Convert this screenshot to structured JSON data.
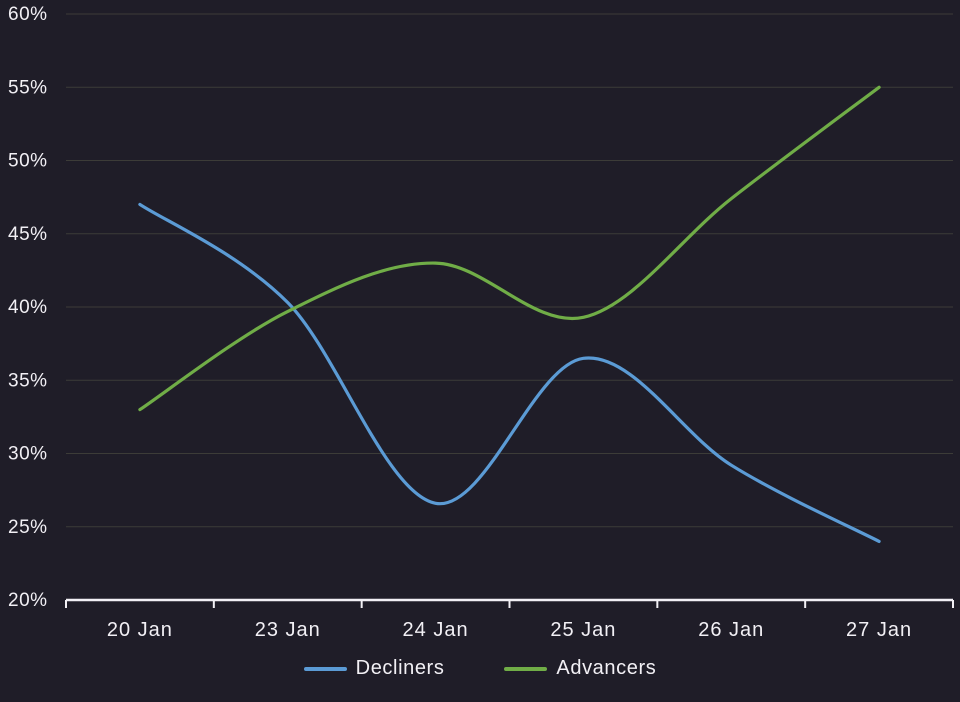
{
  "chart_data": {
    "type": "line",
    "title": "",
    "x_categories": [
      "20 Jan",
      "23 Jan",
      "24 Jan",
      "25 Jan",
      "26 Jan",
      "27 Jan"
    ],
    "y_ticks": [
      "60%",
      "55%",
      "50%",
      "45%",
      "40%",
      "35%",
      "30%",
      "25%",
      "20%"
    ],
    "ylim": [
      20,
      60
    ],
    "grid": true,
    "legend_position": "bottom",
    "series": [
      {
        "name": "Decliners",
        "color": "#5b9bd5",
        "values": [
          47,
          40.3,
          26.6,
          36.5,
          29.2,
          24
        ]
      },
      {
        "name": "Advancers",
        "color": "#70ad47",
        "values": [
          33,
          39.7,
          43,
          39.3,
          47.4,
          55
        ]
      }
    ]
  },
  "colors": {
    "background": "#1f1d28",
    "gridline": "#3c3c38",
    "axis": "#f2f0f5",
    "text": "#f2f0f5"
  }
}
